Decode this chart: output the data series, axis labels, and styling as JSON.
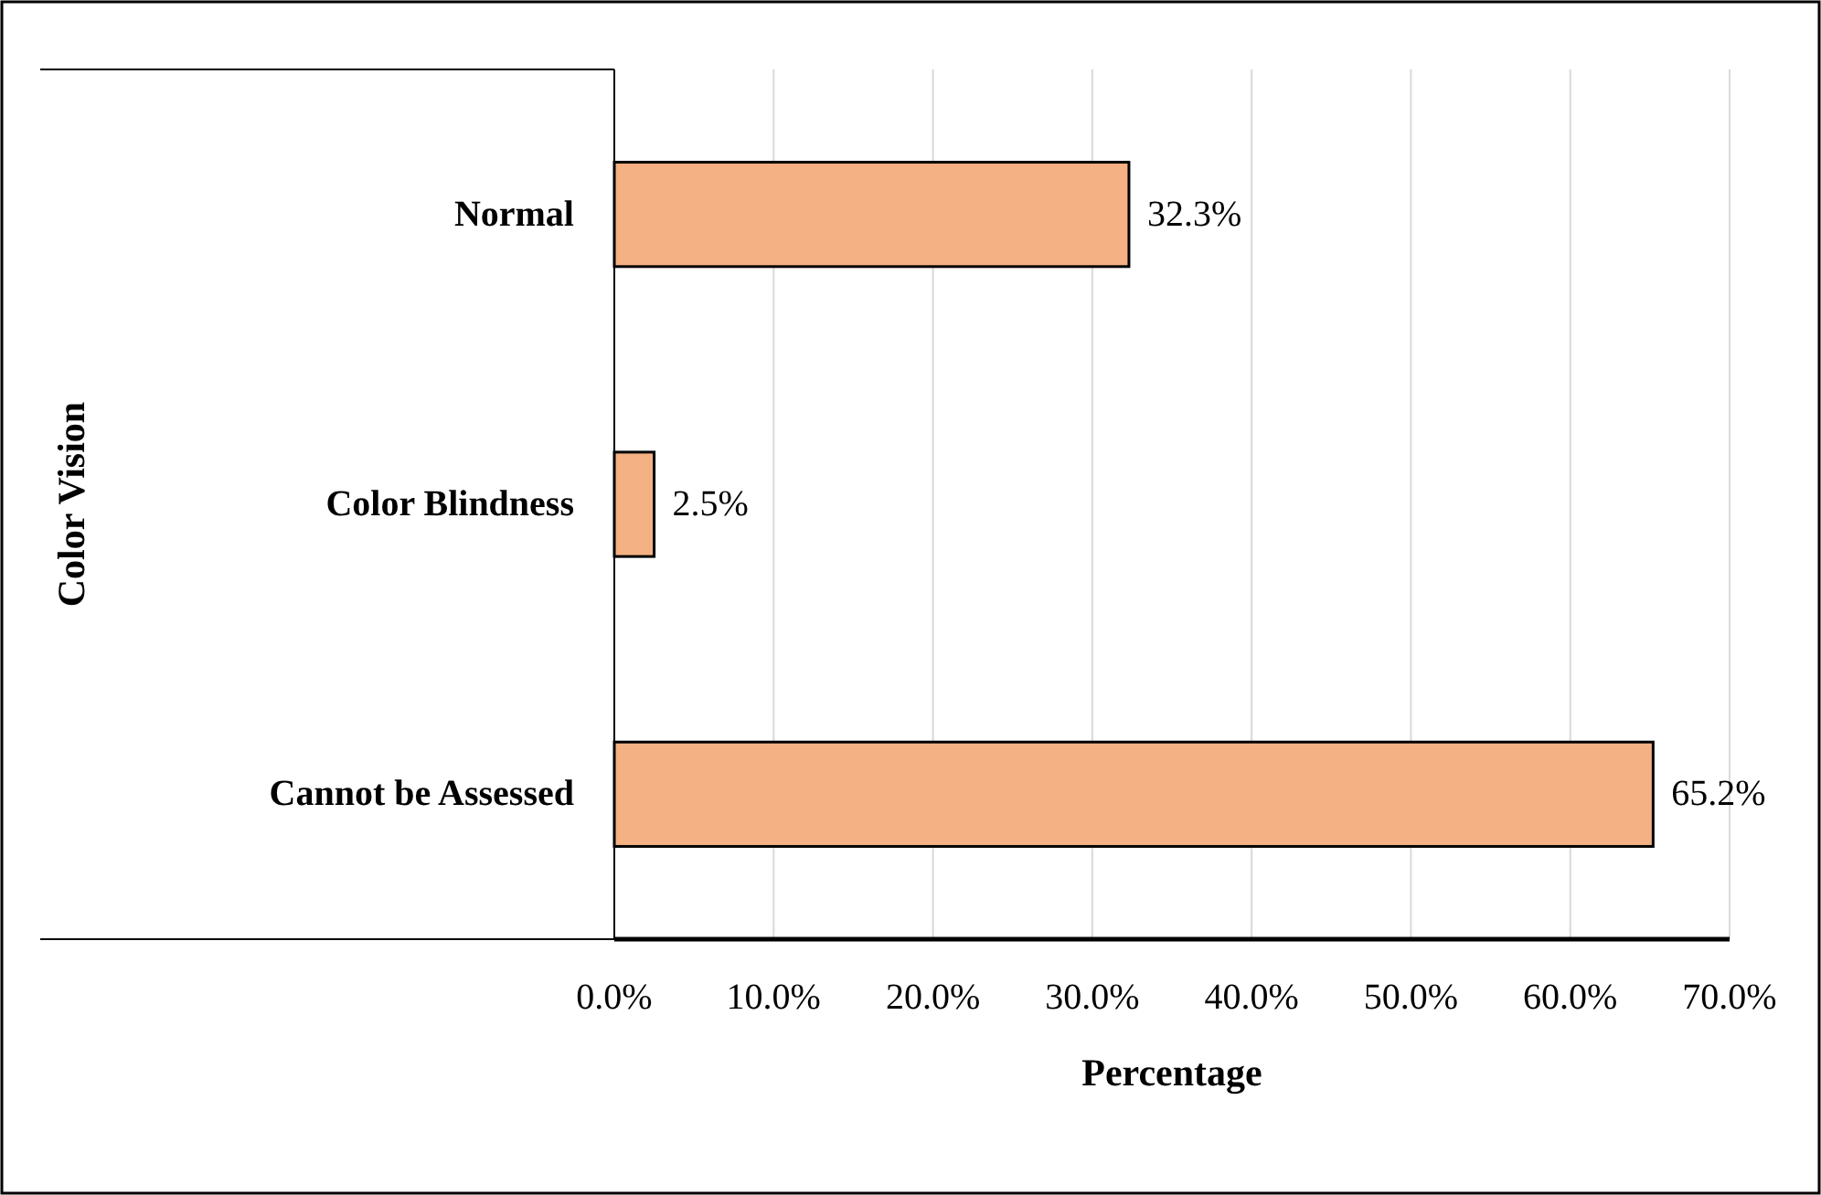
{
  "chart_data": {
    "type": "bar",
    "orientation": "horizontal",
    "xlabel": "Percentage",
    "ylabel": "Color Vision",
    "categories": [
      "Normal",
      "Color Blindness",
      "Cannot be Assessed"
    ],
    "values": [
      32.3,
      2.5,
      65.2
    ],
    "color": "#f4b183",
    "value_labels": [
      "32.3%",
      "2.5%",
      "65.2%"
    ],
    "xlim": [
      0,
      70
    ],
    "xticks": [
      {
        "value": 0,
        "label": "0.0%"
      },
      {
        "value": 10,
        "label": "10.0%"
      },
      {
        "value": 20,
        "label": "20.0%"
      },
      {
        "value": 30,
        "label": "30.0%"
      },
      {
        "value": 40,
        "label": "40.0%"
      },
      {
        "value": 50,
        "label": "50.0%"
      },
      {
        "value": 60,
        "label": "60.0%"
      },
      {
        "value": 70,
        "label": "70.0%"
      }
    ],
    "grid": "x"
  }
}
